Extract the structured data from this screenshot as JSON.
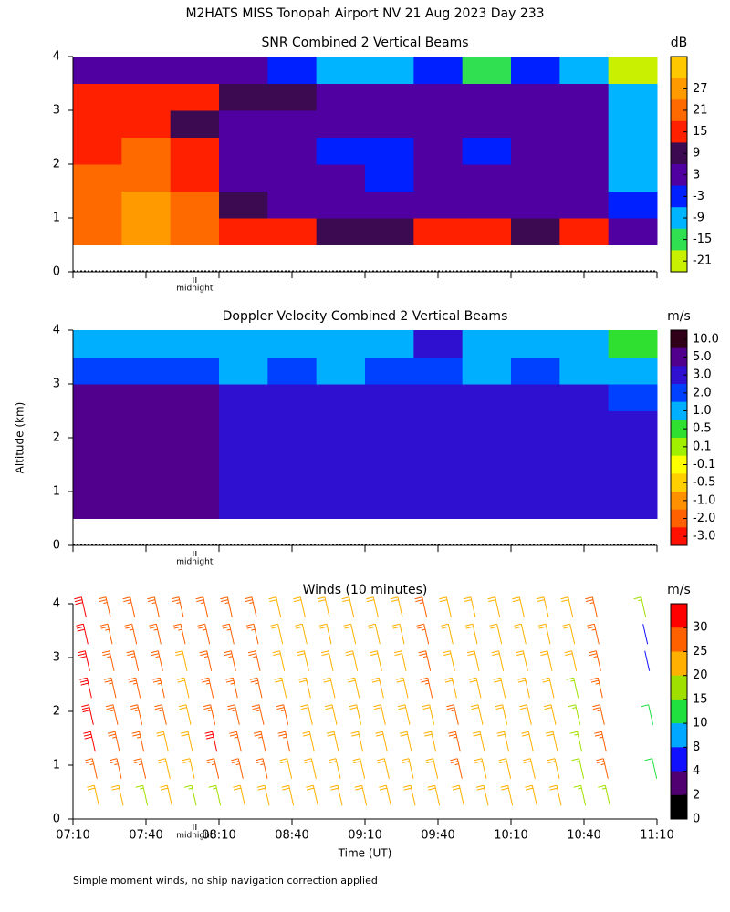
{
  "title": "M2HATS MISS Tonopah Airport NV  21 Aug 2023 Day 233",
  "y_axis_label": "Altitude (km)",
  "footnote": "Simple moment winds, no ship navigation correction applied",
  "chart_data": [
    {
      "type": "heatmap",
      "title": "SNR Combined 2 Vertical Beams",
      "colorbar_label": "dB",
      "colorbar": "linear",
      "clim": [
        -24,
        36
      ],
      "cticks": [
        27,
        21,
        15,
        9,
        3,
        -3,
        -9,
        -15,
        -21
      ],
      "colors": [
        "#ffc800",
        "#ff9a00",
        "#ff6a00",
        "#ff2000",
        "#3c0a50",
        "#5000a0",
        "#0020ff",
        "#00b4ff",
        "#30e050",
        "#c8f000"
      ],
      "xlim": [
        430,
        670
      ],
      "xticks": [
        430,
        460,
        490,
        520,
        550,
        580,
        610,
        640,
        670
      ],
      "ylim": [
        0,
        4
      ],
      "yticks": [
        0,
        1,
        2,
        3,
        4
      ],
      "midnight": {
        "value": 480,
        "label": "midnight"
      },
      "xbins": [
        430,
        450,
        470,
        490,
        510,
        530,
        550,
        570,
        590,
        610,
        630,
        650,
        670
      ],
      "ybins": [
        0.5,
        1,
        1.5,
        2,
        2.5,
        3,
        3.5,
        4
      ],
      "values": [
        [
          24,
          30,
          24,
          15,
          15,
          12,
          9,
          15,
          15,
          12,
          15,
          3
        ],
        [
          24,
          30,
          21,
          9,
          6,
          6,
          3,
          6,
          6,
          6,
          6,
          0
        ],
        [
          21,
          24,
          18,
          6,
          3,
          3,
          0,
          3,
          3,
          3,
          3,
          -6
        ],
        [
          18,
          21,
          15,
          6,
          3,
          0,
          -3,
          3,
          0,
          3,
          3,
          -9
        ],
        [
          18,
          18,
          12,
          6,
          6,
          3,
          3,
          3,
          3,
          3,
          3,
          -6
        ],
        [
          15,
          15,
          15,
          9,
          9,
          6,
          6,
          6,
          6,
          6,
          6,
          -9
        ],
        [
          6,
          6,
          6,
          3,
          0,
          -6,
          -6,
          -3,
          -12,
          -3,
          -6,
          -18
        ]
      ]
    },
    {
      "type": "heatmap",
      "title": "Doppler Velocity Combined 2 Vertical Beams",
      "colorbar_label": "m/s",
      "colorbar": "centered",
      "cticks": [
        {
          "value": 10,
          "label": "10.0"
        },
        {
          "value": 5,
          "label": "5.0"
        },
        {
          "value": 3,
          "label": "3.0"
        },
        {
          "value": 2,
          "label": "2.0"
        },
        {
          "value": 1,
          "label": "1.0"
        },
        0.5,
        0.1,
        -0.1,
        -0.5,
        {
          "value": -1,
          "label": "-1.0"
        },
        {
          "value": -2,
          "label": "-2.0"
        },
        {
          "value": -3,
          "label": "-3.0"
        }
      ],
      "colors": [
        "#300018",
        "#50008c",
        "#3010d0",
        "#0040ff",
        "#00b0ff",
        "#30e030",
        "#a0f000",
        "#ffff00",
        "#ffd000",
        "#ff9000",
        "#ff6000",
        "#ff1000"
      ],
      "xlim": [
        430,
        670
      ],
      "xticks": [
        430,
        460,
        490,
        520,
        550,
        580,
        610,
        640,
        670
      ],
      "ylim": [
        0,
        4
      ],
      "yticks": [
        0,
        1,
        2,
        3,
        4
      ],
      "midnight": {
        "value": 480,
        "label": "midnight"
      },
      "xbins": [
        430,
        450,
        470,
        490,
        510,
        530,
        550,
        570,
        590,
        610,
        630,
        650,
        670
      ],
      "ybins": [
        0.5,
        1,
        1.5,
        2,
        2.5,
        3,
        3.5,
        4
      ],
      "values": [
        [
          5,
          5,
          5,
          3,
          3,
          3,
          3,
          3,
          3,
          3,
          3,
          3
        ],
        [
          5,
          5,
          5,
          3,
          3,
          3,
          3,
          3,
          3,
          3,
          3,
          3
        ],
        [
          5,
          5,
          5,
          3,
          3,
          3,
          3,
          3,
          3,
          3,
          3,
          3
        ],
        [
          5,
          5,
          5,
          3,
          3,
          3,
          3,
          3,
          3,
          3,
          3,
          3
        ],
        [
          5,
          5,
          5,
          3,
          3,
          3,
          3,
          3,
          3,
          3,
          3,
          2
        ],
        [
          2,
          2,
          2,
          1,
          2,
          1,
          2,
          2,
          1,
          2,
          1,
          1
        ],
        [
          1,
          1,
          1,
          1,
          1,
          1,
          1,
          3,
          1,
          1,
          1,
          0.5
        ]
      ]
    },
    {
      "type": "barbs",
      "title": "Winds (10 minutes)",
      "colorbar_label": "m/s",
      "colorbar": "edges",
      "cticks": [
        30,
        25,
        20,
        15,
        10,
        8,
        4,
        2,
        0
      ],
      "colors": [
        "#ff0000",
        "#ff6000",
        "#ffb000",
        "#a0e000",
        "#20e040",
        "#00a8ff",
        "#1010ff",
        "#500070",
        "#000000"
      ],
      "xlim": [
        430,
        670
      ],
      "xticks": [
        {
          "value": 430,
          "label": "07:10"
        },
        {
          "value": 460,
          "label": "07:40"
        },
        {
          "value": 490,
          "label": "08:10"
        },
        {
          "value": 520,
          "label": "08:40"
        },
        {
          "value": 550,
          "label": "09:10"
        },
        {
          "value": 580,
          "label": "09:40"
        },
        {
          "value": 610,
          "label": "10:10"
        },
        {
          "value": 640,
          "label": "10:40"
        },
        {
          "value": 670,
          "label": "11:10"
        }
      ],
      "xlabel": "Time (UT)",
      "ylim": [
        0,
        4
      ],
      "yticks": [
        0,
        1,
        2,
        3,
        4
      ],
      "midnight": {
        "value": 480,
        "label": "midnight"
      },
      "x": [
        435,
        445,
        455,
        465,
        475,
        485,
        495,
        505,
        515,
        525,
        535,
        545,
        555,
        565,
        575,
        585,
        595,
        605,
        615,
        625,
        635,
        645,
        665
      ],
      "heights": [
        0.25,
        0.75,
        1.25,
        1.75,
        2.25,
        2.75,
        3.25,
        3.75
      ],
      "values": [
        [
          22,
          28,
          30,
          31,
          31,
          31,
          31,
          30
        ],
        [
          20,
          27,
          28,
          28,
          28,
          27,
          28,
          28
        ],
        [
          18,
          26,
          27,
          26,
          26,
          26,
          27,
          27
        ],
        [
          20,
          22,
          24,
          26,
          26,
          26,
          27,
          27
        ],
        [
          15,
          21,
          22,
          22,
          23,
          24,
          26,
          26
        ],
        [
          16,
          25,
          30,
          28,
          26,
          25,
          26,
          25
        ],
        [
          20,
          26,
          28,
          27,
          27,
          26,
          26,
          26
        ],
        [
          22,
          25,
          27,
          26,
          26,
          25,
          25,
          25
        ],
        [
          22,
          24,
          25,
          25,
          24,
          23,
          22,
          22
        ],
        [
          22,
          24,
          24,
          23,
          22,
          22,
          21,
          21
        ],
        [
          22,
          24,
          23,
          22,
          21,
          21,
          21,
          21
        ],
        [
          22,
          23,
          22,
          21,
          21,
          21,
          21,
          21
        ],
        [
          22,
          22,
          21,
          21,
          21,
          21,
          21,
          22
        ],
        [
          23,
          22,
          21,
          21,
          21,
          22,
          22,
          22
        ],
        [
          24,
          24,
          24,
          24,
          25,
          27,
          26,
          26
        ],
        [
          21,
          25,
          26,
          26,
          24,
          23,
          23,
          23
        ],
        [
          21,
          24,
          23,
          23,
          22,
          23,
          22,
          22
        ],
        [
          22,
          22,
          22,
          22,
          22,
          21,
          21,
          21
        ],
        [
          21,
          22,
          22,
          23,
          22,
          22,
          22,
          21
        ],
        [
          22,
          22,
          22,
          22,
          22,
          22,
          22,
          21
        ],
        [
          18,
          16,
          18,
          18,
          18,
          20,
          22,
          22
        ],
        [
          17,
          26,
          27,
          27,
          26,
          26,
          26,
          27
        ],
        [
          null,
          10,
          null,
          12,
          null,
          4,
          4,
          18
        ]
      ]
    }
  ]
}
